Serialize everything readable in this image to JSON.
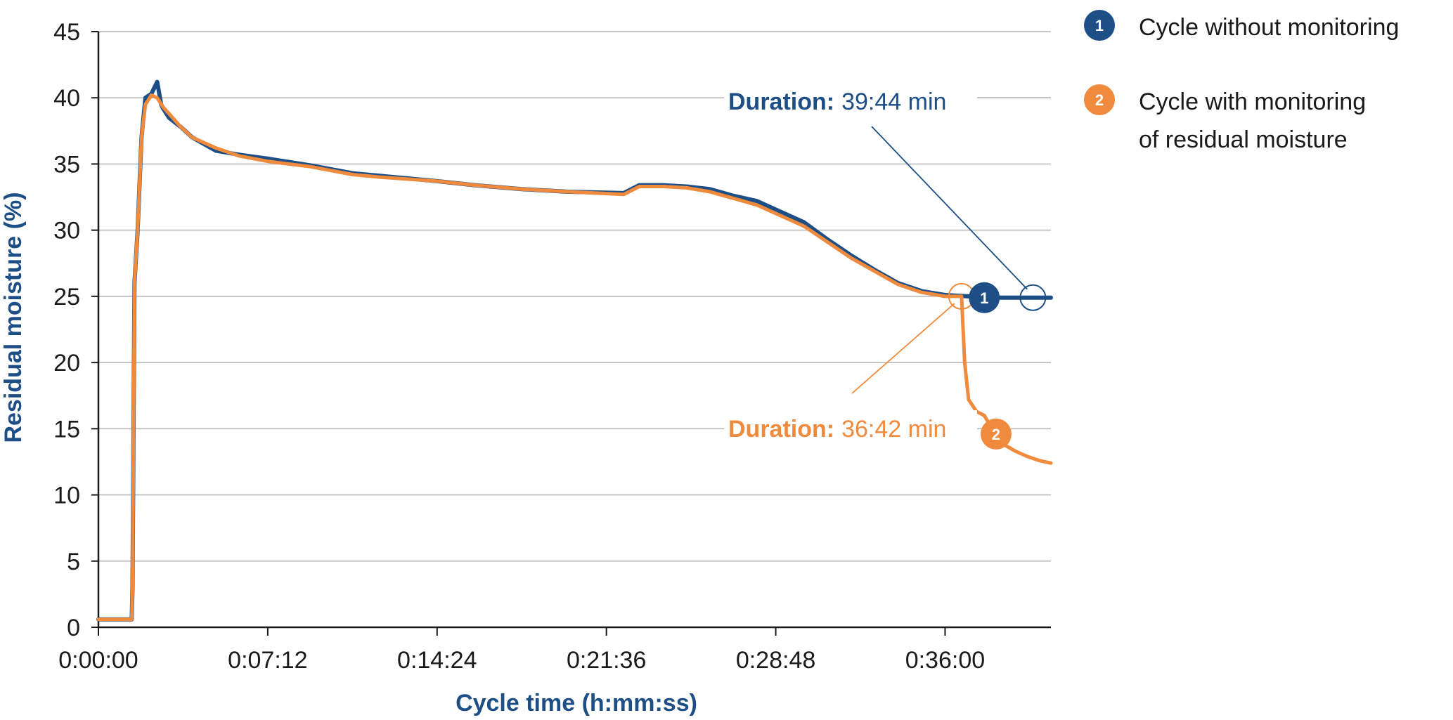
{
  "chart_data": {
    "type": "line",
    "xlabel": "Cycle time (h:mm:ss)",
    "ylabel": "Residual moisture  (%)",
    "xlim": [
      "0:00:00",
      "0:40:30"
    ],
    "ylim": [
      0,
      45
    ],
    "grid": true,
    "legend_position": "top-right",
    "x_tick_labels": [
      "0:00:00",
      "0:07:12",
      "0:14:24",
      "0:21:36",
      "0:28:48",
      "0:36:00"
    ],
    "y_tick_labels": [
      "0",
      "5",
      "10",
      "15",
      "20",
      "25",
      "30",
      "35",
      "40",
      "45"
    ],
    "series": [
      {
        "name": "Cycle without monitoring",
        "marker_label": "1",
        "color": "#1d4f86",
        "x": [
          "0:00:00",
          "0:01:25",
          "0:01:27",
          "0:01:32",
          "0:01:40",
          "0:01:50",
          "0:02:00",
          "0:02:15",
          "0:02:30",
          "0:02:40",
          "0:02:45",
          "0:03:00",
          "0:03:30",
          "0:04:00",
          "0:05:00",
          "0:06:00",
          "0:07:12",
          "0:09:00",
          "0:10:48",
          "0:12:00",
          "0:14:24",
          "0:16:00",
          "0:18:00",
          "0:20:00",
          "0:22:20",
          "0:23:00",
          "0:24:00",
          "0:25:00",
          "0:26:00",
          "0:27:00",
          "0:28:00",
          "0:29:00",
          "0:30:00",
          "0:31:00",
          "0:32:00",
          "0:33:00",
          "0:34:00",
          "0:35:00",
          "0:36:00",
          "0:37:00",
          "0:38:00",
          "0:39:00",
          "0:40:00",
          "0:40:30"
        ],
        "y": [
          0.6,
          0.6,
          3,
          26,
          30,
          37,
          40,
          40.3,
          41.2,
          39.5,
          39.2,
          38.5,
          37.8,
          37,
          36,
          35.7,
          35.4,
          34.9,
          34.3,
          34.1,
          33.7,
          33.4,
          33.1,
          32.9,
          32.8,
          33.4,
          33.4,
          33.3,
          33.1,
          32.6,
          32.2,
          31.4,
          30.6,
          29.3,
          28.1,
          27,
          26,
          25.4,
          25.1,
          25,
          24.9,
          24.9,
          24.9,
          24.9
        ]
      },
      {
        "name": "Cycle with monitoring of residual moisture",
        "marker_label": "2",
        "color": "#f08a3c",
        "x": [
          "0:00:00",
          "0:01:25",
          "0:01:27",
          "0:01:32",
          "0:01:40",
          "0:01:50",
          "0:02:00",
          "0:02:15",
          "0:02:30",
          "0:02:45",
          "0:03:00",
          "0:03:30",
          "0:04:00",
          "0:05:00",
          "0:06:00",
          "0:07:12",
          "0:09:00",
          "0:10:48",
          "0:12:00",
          "0:14:24",
          "0:16:00",
          "0:18:00",
          "0:20:00",
          "0:22:20",
          "0:23:00",
          "0:24:00",
          "0:25:00",
          "0:26:00",
          "0:27:00",
          "0:28:00",
          "0:29:00",
          "0:30:00",
          "0:31:00",
          "0:32:00",
          "0:33:00",
          "0:34:00",
          "0:35:00",
          "0:36:00",
          "0:36:42",
          "0:36:50",
          "0:37:00",
          "0:37:20",
          "0:37:40",
          "0:38:00",
          "0:38:30",
          "0:39:00",
          "0:39:30",
          "0:40:00",
          "0:40:30"
        ],
        "y": [
          0.6,
          0.6,
          3,
          26,
          30,
          37,
          39.5,
          40.2,
          40,
          39.3,
          38.8,
          37.8,
          37,
          36.2,
          35.6,
          35.2,
          34.8,
          34.2,
          34,
          33.7,
          33.4,
          33.1,
          32.9,
          32.7,
          33.3,
          33.3,
          33.2,
          32.9,
          32.4,
          31.9,
          31.1,
          30.3,
          29.1,
          27.9,
          26.9,
          25.9,
          25.3,
          25,
          25,
          20,
          17.2,
          16.3,
          16,
          15,
          13.8,
          13.3,
          12.9,
          12.6,
          12.4
        ]
      }
    ],
    "annotations": [
      {
        "label": "Duration:",
        "value": "39:44 min",
        "series": 1,
        "x": "0:39:44",
        "y": 24.9
      },
      {
        "label": "Duration:",
        "value": "36:42 min",
        "series": 2,
        "x": "0:36:42",
        "y": 25
      }
    ]
  }
}
